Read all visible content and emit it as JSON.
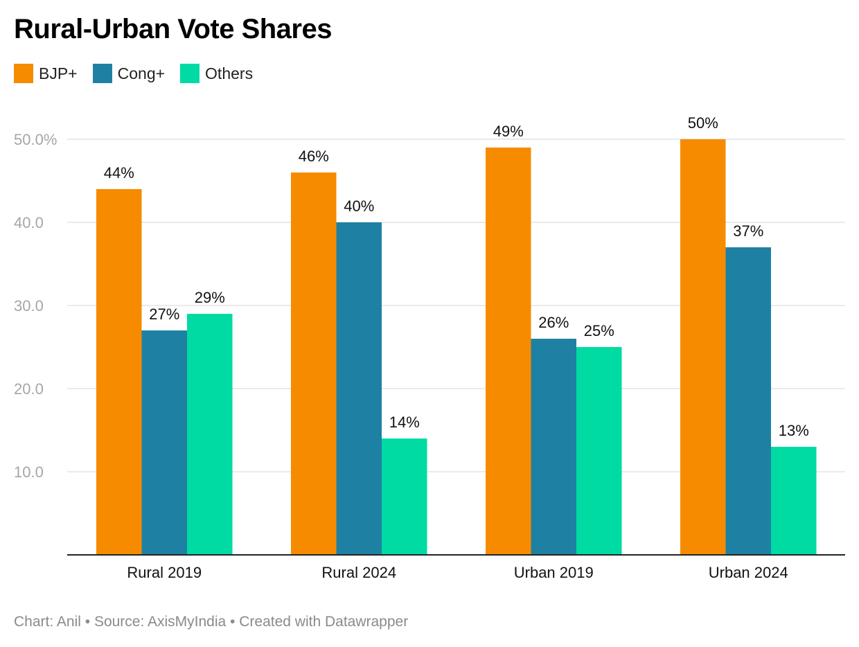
{
  "title": "Rural-Urban Vote Shares",
  "footer": {
    "chart": "Chart: Anil",
    "source": "Source: AxisMyIndia",
    "tool": "Created with Datawrapper",
    "separator": "•"
  },
  "chart_data": {
    "type": "bar",
    "title": "Rural-Urban Vote Shares",
    "xlabel": "",
    "ylabel": "",
    "categories": [
      "Rural 2019",
      "Rural 2024",
      "Urban 2019",
      "Urban 2024"
    ],
    "series": [
      {
        "name": "BJP+",
        "color": "#f68b00",
        "values": [
          44,
          46,
          49,
          50
        ],
        "labels": [
          "44%",
          "46%",
          "49%",
          "50%"
        ]
      },
      {
        "name": "Cong+",
        "color": "#1e81a4",
        "values": [
          27,
          40,
          26,
          37
        ],
        "labels": [
          "27%",
          "40%",
          "26%",
          "37%"
        ]
      },
      {
        "name": "Others",
        "color": "#00dba3",
        "values": [
          29,
          14,
          25,
          13
        ],
        "labels": [
          "29%",
          "14%",
          "25%",
          "13%"
        ]
      }
    ],
    "yticks": [
      "10.0",
      "20.0",
      "30.0",
      "40.0",
      "50.0%"
    ],
    "ytick_values": [
      10,
      20,
      30,
      40,
      50
    ],
    "ylim": [
      0,
      50
    ],
    "grid": true,
    "legend": "top-left"
  }
}
